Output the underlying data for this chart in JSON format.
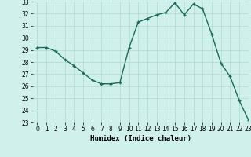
{
  "x": [
    0,
    1,
    2,
    3,
    4,
    5,
    6,
    7,
    8,
    9,
    10,
    11,
    12,
    13,
    14,
    15,
    16,
    17,
    18,
    19,
    20,
    21,
    22,
    23
  ],
  "y": [
    29.2,
    29.2,
    28.9,
    28.2,
    27.7,
    27.1,
    26.5,
    26.2,
    26.2,
    26.3,
    29.2,
    31.3,
    31.6,
    31.9,
    32.1,
    32.9,
    31.9,
    32.8,
    32.4,
    30.3,
    27.9,
    26.8,
    24.8,
    23.2
  ],
  "line_color": "#1a6b5a",
  "marker": "+",
  "marker_size": 3.5,
  "marker_lw": 1.0,
  "bg_color": "#cff0eb",
  "grid_color": "#aed8d0",
  "xlabel": "Humidex (Indice chaleur)",
  "ylim": [
    23,
    33
  ],
  "xlim": [
    -0.5,
    23
  ],
  "yticks": [
    23,
    24,
    25,
    26,
    27,
    28,
    29,
    30,
    31,
    32,
    33
  ],
  "xticks": [
    0,
    1,
    2,
    3,
    4,
    5,
    6,
    7,
    8,
    9,
    10,
    11,
    12,
    13,
    14,
    15,
    16,
    17,
    18,
    19,
    20,
    21,
    22,
    23
  ],
  "xlabel_fontsize": 6.5,
  "tick_fontsize": 5.5,
  "line_width": 1.0
}
